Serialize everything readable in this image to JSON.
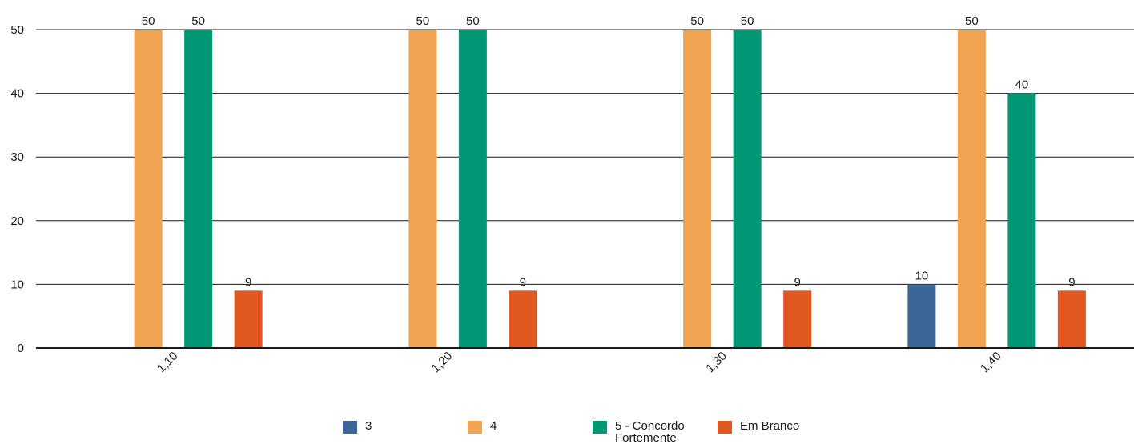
{
  "chart_data": {
    "type": "bar",
    "categories": [
      "1,10",
      "1,20",
      "1,30",
      "1,40"
    ],
    "series": [
      {
        "name": "3",
        "color": "#3a6698",
        "values": [
          null,
          null,
          null,
          10
        ]
      },
      {
        "name": "4",
        "color": "#f0a452",
        "values": [
          50,
          50,
          50,
          50
        ]
      },
      {
        "name": "5 - Concordo Fortemente",
        "color": "#009775",
        "values": [
          50,
          50,
          50,
          40
        ]
      },
      {
        "name": "Em Branco",
        "color": "#e0571f",
        "values": [
          9,
          9,
          9,
          9
        ]
      }
    ],
    "yticks": [
      "0",
      "10",
      "20",
      "30",
      "40",
      "50"
    ],
    "ylim": [
      0,
      50
    ],
    "grid": true,
    "legend_position": "bottom",
    "title": "",
    "xlabel": "",
    "ylabel": ""
  },
  "legend": {
    "items": [
      {
        "label": "3",
        "color": "#3a6698"
      },
      {
        "label": "4",
        "color": "#f0a452"
      },
      {
        "label": "5 - Concordo Fortemente",
        "color": "#009775"
      },
      {
        "label": "Em Branco",
        "color": "#e0571f"
      }
    ]
  }
}
